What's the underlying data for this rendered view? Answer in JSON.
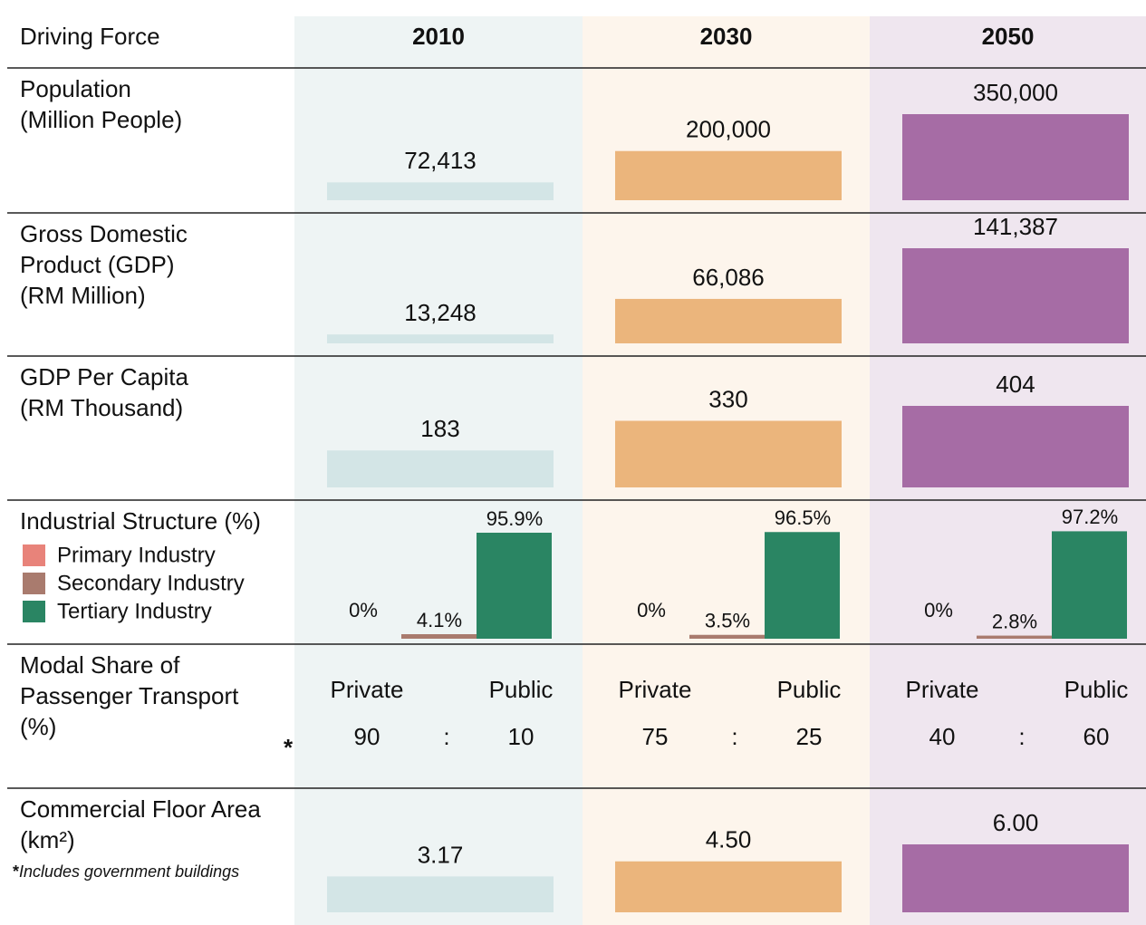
{
  "header": {
    "label": "Driving Force"
  },
  "years": [
    {
      "label": "2010",
      "bg": "#eef4f4",
      "bar": "#d3e5e6"
    },
    {
      "label": "2030",
      "bg": "#fdf5ec",
      "bar": "#ebb57c"
    },
    {
      "label": "2050",
      "bg": "#efe6ef",
      "bar": "#a66ca5"
    }
  ],
  "note_marker": "*",
  "rows": [
    {
      "type": "bars",
      "label": [
        "Population",
        "(Million People)"
      ],
      "values": [
        72413,
        200000,
        350000
      ],
      "value_labels": [
        "72,413",
        "200,000",
        "350,000"
      ]
    },
    {
      "type": "bars",
      "label": [
        "Gross Domestic",
        "Product (GDP)",
        "(RM Million)"
      ],
      "values": [
        13248,
        66086,
        141387
      ],
      "value_labels": [
        "13,248",
        "66,086",
        "141,387"
      ]
    },
    {
      "type": "bars",
      "label": [
        "GDP Per Capita",
        "(RM Thousand)"
      ],
      "values": [
        183,
        330,
        404
      ]
    },
    {
      "type": "industry",
      "label": [
        "Industrial Structure (%)"
      ],
      "legend": [
        {
          "name": "Primary Industry",
          "color": "#e8837a"
        },
        {
          "name": "Secondary Industry",
          "color": "#a97b6e"
        },
        {
          "name": "Tertiary Industry",
          "color": "#2a8563"
        }
      ],
      "values": [
        [
          0,
          4.1,
          95.9
        ],
        [
          0,
          3.5,
          96.5
        ],
        [
          0,
          2.8,
          97.2
        ]
      ],
      "value_labels": [
        [
          "0%",
          "4.1%",
          "95.9%"
        ],
        [
          "0%",
          "3.5%",
          "96.5%"
        ],
        [
          "0%",
          "2.8%",
          "97.2%"
        ]
      ]
    },
    {
      "type": "modal",
      "label": [
        "Modal Share of",
        "Passenger Transport",
        "(%)"
      ],
      "categories": [
        "Private",
        "Public"
      ],
      "separator": ":",
      "values": [
        [
          90,
          10
        ],
        [
          75,
          25
        ],
        [
          40,
          60
        ]
      ]
    },
    {
      "type": "bars",
      "label": [
        "Commercial Floor Area",
        "(km²)"
      ],
      "values": [
        3.17,
        4.5,
        6
      ],
      "value_labels": [
        "3.17",
        "4.50",
        "6.00"
      ],
      "footnote": "Includes government buildings"
    }
  ]
}
